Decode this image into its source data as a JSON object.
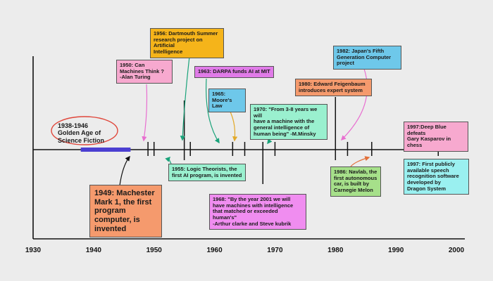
{
  "axis": {
    "ticks": [
      "1930",
      "1940",
      "1950",
      "1960",
      "1970",
      "1980",
      "1990",
      "2000"
    ]
  },
  "golden_age": {
    "label": "1938-1946\nGolden Age of\nScience Fiction",
    "start": 1938,
    "end": 1946,
    "color": "#4b3fd1"
  },
  "events": [
    {
      "id": "e1949",
      "year": 1949,
      "text": "1949: Machester\nMark 1, the first\n  program\ncomputer, is invented",
      "color": "#f59a6d"
    },
    {
      "id": "e1950",
      "year": 1950,
      "text": "1950: Can\nMachines Think ?\n-Alan Turing",
      "color": "#f7a9cf"
    },
    {
      "id": "e1955",
      "year": 1955,
      "text": "1955: Logic Theorists, the\nfirst AI program, is invented",
      "color": "#9af0cf"
    },
    {
      "id": "e1956",
      "year": 1956,
      "text": "1956: Dartmouth Summer\nresearch project on Artificial\nIntelligence",
      "color": "#f5b41a"
    },
    {
      "id": "e1963",
      "year": 1963,
      "text": "1963: DARPA funds AI at MIT",
      "color": "#e07be8"
    },
    {
      "id": "e1965",
      "year": 1965,
      "text": "1965:\nMoore's Law",
      "color": "#6ec8ea"
    },
    {
      "id": "e1968",
      "year": 1968,
      "text": "1968: \"By the year 2001 we will\nhave machines with intelligence\nthat matched or exceeded human's\"\n-Arthur clarke and Steve kubrik",
      "color": "#f08df0"
    },
    {
      "id": "e1970",
      "year": 1970,
      "text": "1970: \"From 3-8 years we will\nhave a machine with the\ngeneral intelligence of\nhuman being\" -M.Minsky",
      "color": "#9af0cf"
    },
    {
      "id": "e1980",
      "year": 1980,
      "text": "1980: Edward Feigenbaum\nintroduces expert system",
      "color": "#f59a6d"
    },
    {
      "id": "e1982",
      "year": 1982,
      "text": "1982: Japan's Fifth\nGeneration Computer\nproject",
      "color": "#6ec8ea"
    },
    {
      "id": "e1986",
      "year": 1986,
      "text": "1986: Navlab, the\nfirst autonomous\ncar, is built by\nCarnegie Melon",
      "color": "#a6e08a"
    },
    {
      "id": "e1997a",
      "year": 1997,
      "text": "1997:Deep Blue defeats\nGary Kasparov in chess",
      "color": "#f7a9cf"
    },
    {
      "id": "e1997b",
      "year": 1997,
      "text": "1997: First publicly\navailable speech\nrecognition software\ndeveloped by\nDragon System",
      "color": "#9af0f0"
    }
  ],
  "colors": {
    "axis": "#111111",
    "golden_circle": "#e0463a",
    "arrow_pink": "#e86fd0",
    "arrow_green": "#1aa37a",
    "arrow_yellow": "#e2a92a",
    "arrow_orange": "#e2703a"
  }
}
